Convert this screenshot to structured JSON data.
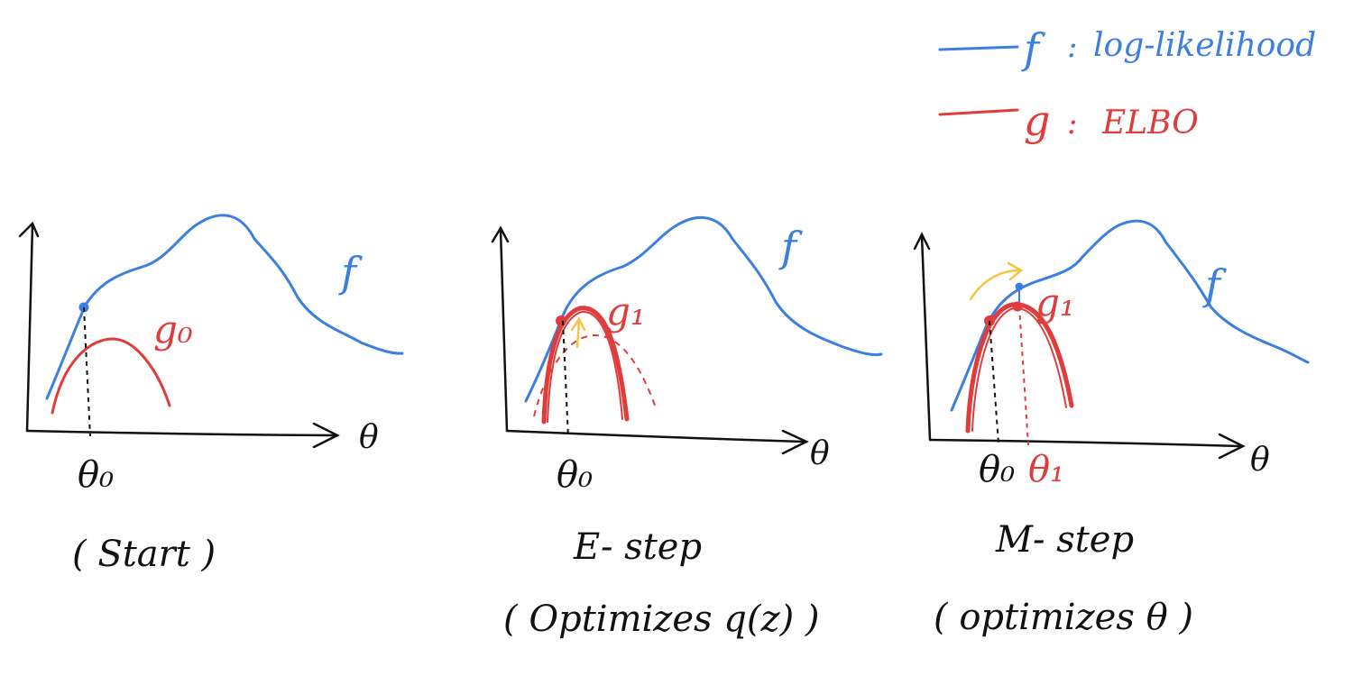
{
  "legend": {
    "items": [
      {
        "symbol": "f",
        "separator": ":",
        "text": "log-likelihood",
        "color": "#3c7fe0"
      },
      {
        "symbol": "g",
        "separator": ":",
        "text": "ELBO",
        "color": "#e03c3c"
      }
    ]
  },
  "panels": [
    {
      "id": "start",
      "axis_label": "θ",
      "f_label": "f",
      "g_label": "g₀",
      "ticks": [
        "θ₀"
      ],
      "caption": "( Start )",
      "subcaption": ""
    },
    {
      "id": "e-step",
      "axis_label": "θ",
      "f_label": "f",
      "g_label": "g₁",
      "ticks": [
        "θ₀"
      ],
      "caption": "E- step",
      "subcaption": "( Optimizes  q(z) )"
    },
    {
      "id": "m-step",
      "axis_label": "θ",
      "f_label": "f",
      "g_label": "g₁",
      "ticks": [
        "θ₀",
        "θ₁"
      ],
      "caption": "M- step",
      "subcaption": "( optimizes θ  )"
    }
  ],
  "colors": {
    "f_curve": "#3c7fe0",
    "g_curve": "#e03c3c",
    "arrow": "#f3c646",
    "ink": "#111111"
  }
}
